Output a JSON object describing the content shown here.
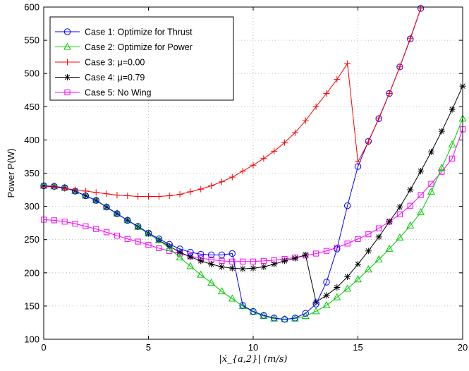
{
  "chart_data": {
    "type": "line",
    "title": "",
    "xlabel": "|ẋ_{a,2}| (m/s)",
    "ylabel": "Power P(W)",
    "xlim": [
      0,
      20
    ],
    "ylim": [
      100,
      600
    ],
    "xticks": [
      0,
      5,
      10,
      15,
      20
    ],
    "yticks": [
      100,
      150,
      200,
      250,
      300,
      350,
      400,
      450,
      500,
      550,
      600
    ],
    "grid": true,
    "legend_position": "top-left",
    "series": [
      {
        "name": "Case 1: Optimize for Thrust",
        "color": "#0000ff",
        "marker": "circle",
        "x": [
          0,
          0.5,
          1,
          1.5,
          2,
          2.5,
          3,
          3.5,
          4,
          4.5,
          5,
          5.5,
          6,
          6.5,
          7,
          7.5,
          8,
          8.5,
          9,
          9.5,
          10,
          10.5,
          11,
          11.5,
          12,
          12.5,
          13,
          13.5,
          14,
          14.5,
          15,
          15.5,
          16,
          16.5,
          17,
          17.5,
          18
        ],
        "y": [
          331,
          330,
          328,
          323,
          316,
          309,
          299,
          289,
          279,
          270,
          260,
          251,
          243,
          236,
          231,
          228,
          227,
          227,
          229,
          151,
          142,
          136,
          132,
          130,
          132,
          139,
          153,
          186,
          236,
          301,
          360,
          398,
          432,
          470,
          510,
          552,
          598
        ]
      },
      {
        "name": "Case 2: Optimize for Power",
        "color": "#00cc00",
        "marker": "triangle",
        "x": [
          0,
          0.5,
          1,
          1.5,
          2,
          2.5,
          3,
          3.5,
          4,
          4.5,
          5,
          5.5,
          6,
          6.5,
          7,
          7.5,
          8,
          8.5,
          9,
          9.5,
          10,
          10.5,
          11,
          11.5,
          12,
          12.5,
          13,
          13.5,
          14,
          14.5,
          15,
          15.5,
          16,
          16.5,
          17,
          17.5,
          18,
          18.5,
          19,
          19.5,
          20
        ],
        "y": [
          331,
          330,
          328,
          323,
          316,
          309,
          299,
          289,
          279,
          269,
          259,
          249,
          237,
          223,
          210,
          197,
          185,
          172,
          161,
          150,
          141,
          135,
          131,
          130,
          131,
          135,
          142,
          151,
          163,
          176,
          190,
          205,
          220,
          236,
          253,
          271,
          291,
          322,
          358,
          393,
          432
        ]
      },
      {
        "name": "Case 3: μ=0.00",
        "color": "#ff0000",
        "marker": "plus",
        "x": [
          0,
          0.5,
          1,
          1.5,
          2,
          2.5,
          3,
          3.5,
          4,
          4.5,
          5,
          5.5,
          6,
          6.5,
          7,
          7.5,
          8,
          8.5,
          9,
          9.5,
          10,
          10.5,
          11,
          11.5,
          12,
          12.5,
          13,
          13.5,
          14,
          14.5,
          15,
          15.5,
          16,
          16.5,
          17,
          17.5,
          18
        ],
        "y": [
          330,
          329,
          327,
          325,
          323,
          321,
          319,
          317,
          316,
          315,
          315,
          315,
          316,
          318,
          322,
          326,
          331,
          337,
          344,
          353,
          362,
          372,
          383,
          396,
          411,
          429,
          450,
          470,
          491,
          515,
          367,
          397,
          433,
          470,
          510,
          553,
          598
        ]
      },
      {
        "name": "Case 4: μ=0.79",
        "color": "#000000",
        "marker": "star",
        "x": [
          0,
          0.5,
          1,
          1.5,
          2,
          2.5,
          3,
          3.5,
          4,
          4.5,
          5,
          5.5,
          6,
          6.5,
          7,
          7.5,
          8,
          8.5,
          9,
          9.5,
          10,
          10.5,
          11,
          11.5,
          12,
          12.5,
          13,
          13.5,
          14,
          14.5,
          15,
          15.5,
          16,
          16.5,
          17,
          17.5,
          18,
          18.5,
          19,
          19.5,
          20
        ],
        "y": [
          331,
          330,
          328,
          323,
          316,
          309,
          299,
          289,
          279,
          269,
          259,
          249,
          240,
          231,
          224,
          218,
          213,
          209,
          207,
          206,
          207,
          209,
          213,
          218,
          222,
          227,
          156,
          166,
          178,
          194,
          213,
          233,
          254,
          277,
          299,
          325,
          353,
          382,
          413,
          446,
          481
        ]
      },
      {
        "name": "Case 5: No Wing",
        "color": "#ff00ff",
        "marker": "square",
        "x": [
          0,
          0.5,
          1,
          1.5,
          2,
          2.5,
          3,
          3.5,
          4,
          4.5,
          5,
          5.5,
          6,
          6.5,
          7,
          7.5,
          8,
          8.5,
          9,
          9.5,
          10,
          10.5,
          11,
          11.5,
          12,
          12.5,
          13,
          13.5,
          14,
          14.5,
          15,
          15.5,
          16,
          16.5,
          17,
          17.5,
          18,
          18.5,
          19,
          19.5,
          20
        ],
        "y": [
          280,
          279,
          277,
          274,
          270,
          266,
          261,
          256,
          251,
          247,
          242,
          237,
          233,
          229,
          225,
          222,
          220,
          218,
          217,
          217,
          217,
          218,
          219,
          221,
          223,
          226,
          229,
          233,
          238,
          244,
          251,
          258,
          267,
          277,
          288,
          301,
          317,
          334,
          352,
          372,
          416
        ]
      }
    ]
  }
}
